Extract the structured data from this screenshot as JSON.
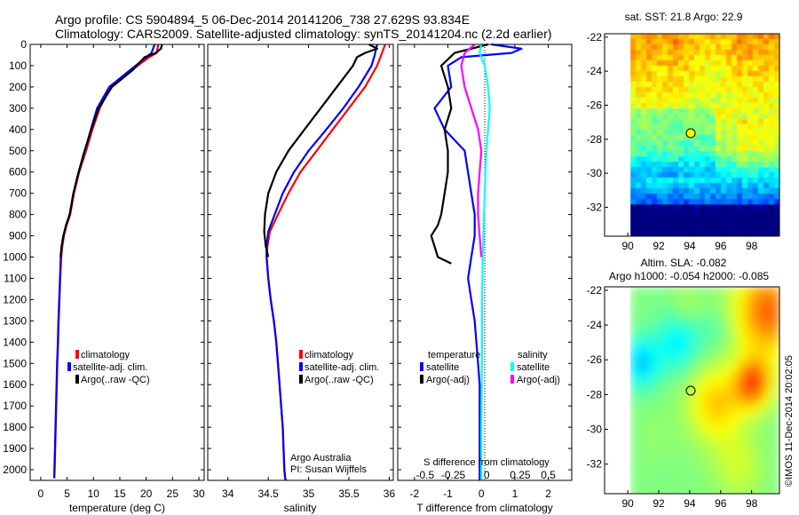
{
  "title": {
    "line1": "Argo profile: CS 5904894_5 06-Dec-2014 20141206_738 27.629S 93.834E",
    "line2": "Climatology: CARS2009. Satellite-adjusted climatology: synTS_20141204.nc (2.2d earlier)"
  },
  "colors": {
    "climatology": "#ff0000",
    "satellite": "#0000ff",
    "argo": "#000000",
    "sat_salinity": "#00ffff",
    "argo_salinity": "#ff00ff"
  },
  "depth_axis": {
    "ylim": [
      0,
      2050
    ],
    "ticks": [
      0,
      100,
      200,
      300,
      400,
      500,
      600,
      700,
      800,
      900,
      1000,
      1100,
      1200,
      1300,
      1400,
      1500,
      1600,
      1700,
      1800,
      1900,
      2000
    ]
  },
  "legend": {
    "climatology": "climatology",
    "satellite": "satellite-adj. clim.",
    "argo": "Argo(..raw -QC)"
  },
  "diff_legend": {
    "temperature": "temperature",
    "salinity": "salinity",
    "satellite": "satellite",
    "argo": "Argo(-adj)"
  },
  "credits": {
    "line1": "Argo Australia",
    "line2": "PI: Susan Wijffels"
  },
  "chart_data": [
    {
      "type": "line",
      "xlabel": "temperature (deg C)",
      "ylabel": "",
      "xlim": [
        -2,
        31
      ],
      "xticks": [
        0,
        5,
        10,
        15,
        20,
        25,
        30
      ],
      "ylim": [
        2050,
        0
      ],
      "series": [
        {
          "name": "climatology",
          "x": [
            22.3,
            22.0,
            20.6,
            17.3,
            13.2,
            11.2,
            9.8,
            8.6,
            7.3,
            6.3,
            5.6,
            4.9,
            4.4,
            4.1,
            3.9,
            3.7,
            3.55,
            3.4,
            3.3,
            3.15,
            3.05,
            2.95,
            2.85,
            2.75,
            2.65,
            2.6
          ],
          "y": [
            0,
            40,
            60,
            120,
            200,
            300,
            400,
            500,
            600,
            700,
            800,
            850,
            900,
            950,
            1000,
            1100,
            1200,
            1300,
            1400,
            1500,
            1600,
            1700,
            1800,
            1900,
            2000,
            2040
          ]
        },
        {
          "name": "satellite-adj. clim.",
          "x": [
            21.6,
            21.0,
            20.0,
            17.0,
            13.0,
            10.7,
            9.5,
            8.4,
            7.2,
            6.2,
            5.5,
            4.8,
            4.3,
            4.0,
            3.8,
            3.65,
            3.5,
            3.35,
            3.25,
            3.1,
            3.0,
            2.9,
            2.8,
            2.7,
            2.6,
            2.55
          ],
          "y": [
            0,
            40,
            60,
            120,
            200,
            300,
            400,
            500,
            600,
            700,
            800,
            850,
            900,
            950,
            1000,
            1100,
            1200,
            1300,
            1400,
            1500,
            1600,
            1700,
            1800,
            1900,
            2000,
            2040
          ]
        },
        {
          "name": "Argo(..raw -QC)",
          "x": [
            23.0,
            22.8,
            21.8,
            20.8,
            19.7,
            17.5,
            13.5,
            11.0,
            9.6,
            8.3,
            7.2,
            6.2,
            5.5,
            4.8,
            4.3,
            3.95,
            3.75
          ],
          "y": [
            0,
            20,
            40,
            50,
            60,
            120,
            200,
            300,
            400,
            500,
            600,
            700,
            800,
            850,
            900,
            950,
            1000
          ]
        }
      ]
    },
    {
      "type": "line",
      "xlabel": "salinity",
      "ylabel": "",
      "xlim": [
        33.75,
        36.05
      ],
      "xticks": [
        34,
        34.5,
        35,
        35.5,
        36
      ],
      "ylim": [
        2050,
        0
      ],
      "series": [
        {
          "name": "climatology",
          "x": [
            35.95,
            35.9,
            35.85,
            35.7,
            35.5,
            35.3,
            35.1,
            34.9,
            34.75,
            34.62,
            34.52,
            34.49,
            34.48,
            34.5,
            34.53,
            34.57,
            34.6,
            34.62,
            34.64,
            34.66,
            34.68,
            34.69,
            34.7,
            34.71,
            34.72
          ],
          "y": [
            0,
            50,
            100,
            200,
            300,
            400,
            500,
            600,
            700,
            800,
            880,
            950,
            1000,
            1100,
            1200,
            1300,
            1400,
            1500,
            1600,
            1700,
            1800,
            1900,
            2000,
            2040,
            2050
          ]
        },
        {
          "name": "satellite-adj. clim.",
          "x": [
            35.85,
            35.82,
            35.78,
            35.62,
            35.43,
            35.22,
            35.0,
            34.82,
            34.68,
            34.58,
            34.5,
            34.48,
            34.48,
            34.5,
            34.53,
            34.57,
            34.6,
            34.62,
            34.64,
            34.66,
            34.68,
            34.69,
            34.7,
            34.71,
            34.72
          ],
          "y": [
            0,
            50,
            100,
            200,
            300,
            400,
            500,
            600,
            700,
            800,
            880,
            950,
            1000,
            1100,
            1200,
            1300,
            1400,
            1500,
            1600,
            1700,
            1800,
            1900,
            2000,
            2040,
            2050
          ]
        },
        {
          "name": "Argo(..raw -QC)",
          "x": [
            35.75,
            35.85,
            35.7,
            35.6,
            35.55,
            35.35,
            35.15,
            34.95,
            34.75,
            34.6,
            34.5,
            34.46,
            34.45,
            34.47,
            34.5
          ],
          "y": [
            0,
            20,
            40,
            60,
            100,
            200,
            300,
            400,
            500,
            600,
            700,
            800,
            880,
            950,
            1000
          ]
        }
      ]
    },
    {
      "type": "line",
      "xlabel": "T difference from climatology",
      "title": "S difference from climatology",
      "ylabel": "",
      "xlim": [
        -2.5,
        2.7
      ],
      "xticks": [
        -2,
        -1,
        0,
        1,
        2
      ],
      "top_ticks": [
        "-0.5",
        "-0.25",
        "0",
        "0.25",
        "0.5"
      ],
      "ylim": [
        2050,
        0
      ],
      "series": [
        {
          "name": "temperature satellite",
          "x": [
            0.3,
            1.2,
            0.9,
            -0.6,
            -1.0,
            -0.9,
            -1.4,
            -1.1,
            -0.5,
            -0.3,
            -0.2,
            -0.2,
            -0.3,
            -0.4,
            -0.3,
            -0.2,
            -0.15,
            -0.1,
            -0.05,
            -0.05,
            -0.05,
            -0.05,
            -0.05,
            -0.05,
            -0.05
          ],
          "y": [
            0,
            20,
            40,
            60,
            100,
            200,
            300,
            400,
            500,
            700,
            800,
            900,
            1000,
            1100,
            1200,
            1300,
            1400,
            1500,
            1600,
            1700,
            1800,
            1900,
            2000,
            2040,
            2050
          ]
        },
        {
          "name": "temperature Argo(-adj)",
          "x": [
            0.2,
            -0.8,
            -1.2,
            -1.0,
            -0.9,
            -1.1,
            -1.0,
            -1.0,
            -1.1,
            -1.2,
            -1.3,
            -1.5,
            -1.4,
            -1.3,
            -0.9
          ],
          "y": [
            0,
            40,
            100,
            200,
            300,
            400,
            500,
            600,
            700,
            800,
            850,
            900,
            950,
            1000,
            1030
          ]
        },
        {
          "name": "salinity satellite",
          "x": [
            0.0,
            -0.05,
            0.1,
            0.2,
            0.25,
            0.2,
            0.15,
            0.12,
            0.1,
            0.08,
            0.06,
            0.04,
            0.03,
            0.02,
            0.02,
            0.02,
            0.01,
            0.0,
            0.0,
            0.0,
            0.0
          ],
          "y": [
            0,
            40,
            100,
            200,
            300,
            400,
            500,
            600,
            700,
            800,
            900,
            1000,
            1100,
            1200,
            1300,
            1400,
            1600,
            1800,
            1900,
            2000,
            2050
          ]
        },
        {
          "name": "salinity Argo(-adj)",
          "x": [
            -0.2,
            -0.5,
            -0.6,
            -0.5,
            -0.3,
            -0.1,
            0.0,
            -0.05,
            -0.1,
            -0.1,
            -0.05,
            0.0
          ],
          "y": [
            0,
            40,
            100,
            200,
            300,
            400,
            500,
            600,
            700,
            800,
            900,
            1000
          ]
        }
      ]
    },
    {
      "type": "heatmap",
      "title": "sat. SST: 21.8 Argo: 22.9",
      "xlim": [
        88.5,
        99.8
      ],
      "ylim": [
        -33.7,
        -21.8
      ],
      "xticks": [
        90,
        92,
        94,
        96,
        98
      ],
      "yticks": [
        -22,
        -24,
        -26,
        -28,
        -30,
        -32
      ],
      "argo_position": [
        93.834,
        -27.629
      ]
    },
    {
      "type": "heatmap",
      "title": "Altim. SLA: -0.082",
      "subtitle": "Argo h1000: -0.054 h2000: -0.085",
      "xlim": [
        88.5,
        99.8
      ],
      "ylim": [
        -33.7,
        -21.8
      ],
      "xticks": [
        90,
        92,
        94,
        96,
        98
      ],
      "yticks": [
        -22,
        -24,
        -26,
        -28,
        -30,
        -32
      ],
      "argo_position": [
        93.834,
        -27.629
      ]
    }
  ],
  "footer": {
    "stamp": "©IMOS 11-Dec-2014 20:02:05"
  }
}
